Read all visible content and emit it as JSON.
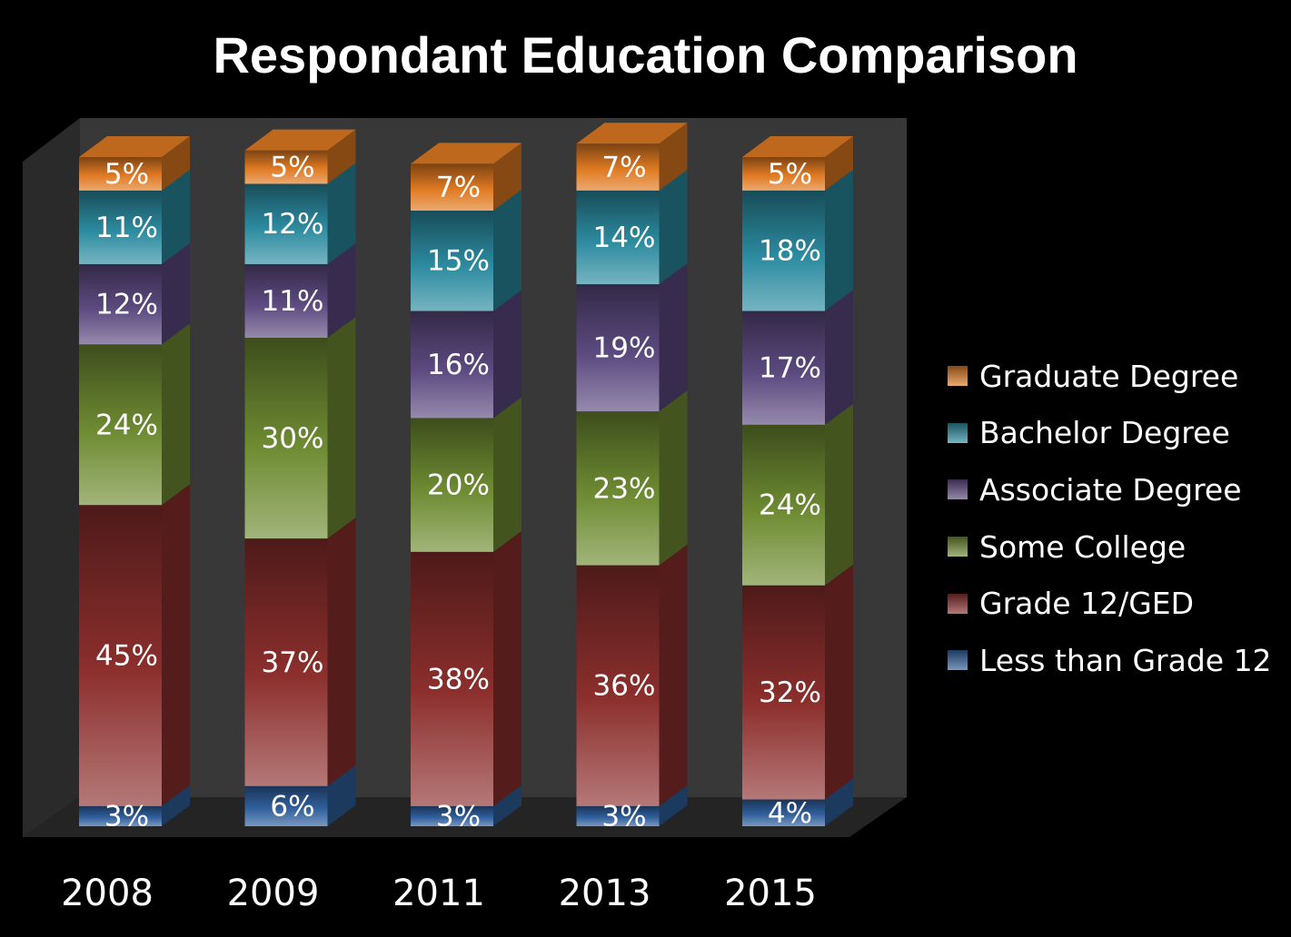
{
  "chart_data": {
    "type": "bar",
    "stacked": true,
    "title": "Respondant Education Comparison",
    "categories": [
      "2008",
      "2009",
      "2011",
      "2013",
      "2015"
    ],
    "ylim": [
      0,
      100
    ],
    "legend_position": "right",
    "series": [
      {
        "name": "Less than Grade 12",
        "color": "#2f5f9c",
        "values": [
          3,
          6,
          3,
          3,
          4
        ],
        "labels": [
          "3%",
          "6%",
          "3%",
          "3%",
          "4%"
        ]
      },
      {
        "name": "Grade 12/GED",
        "color": "#8c2f2d",
        "values": [
          45,
          37,
          38,
          36,
          32
        ],
        "labels": [
          "45%",
          "37%",
          "38%",
          "36%",
          "32%"
        ]
      },
      {
        "name": "Some College",
        "color": "#6f8c33",
        "values": [
          24,
          30,
          20,
          23,
          24
        ],
        "labels": [
          "24%",
          "30%",
          "20%",
          "23%",
          "24%"
        ]
      },
      {
        "name": "Associate Degree",
        "color": "#5c4a80",
        "values": [
          12,
          11,
          16,
          19,
          17
        ],
        "labels": [
          "12%",
          "11%",
          "16%",
          "19%",
          "17%"
        ]
      },
      {
        "name": "Bachelor Degree",
        "color": "#2c8ba0",
        "values": [
          11,
          12,
          15,
          14,
          18
        ],
        "labels": [
          "11%",
          "12%",
          "15%",
          "14%",
          "18%"
        ]
      },
      {
        "name": "Graduate Degree",
        "color": "#e07a22",
        "values": [
          5,
          5,
          7,
          7,
          5
        ],
        "labels": [
          "5%",
          "5%",
          "7%",
          "7%",
          "5%"
        ]
      }
    ]
  }
}
